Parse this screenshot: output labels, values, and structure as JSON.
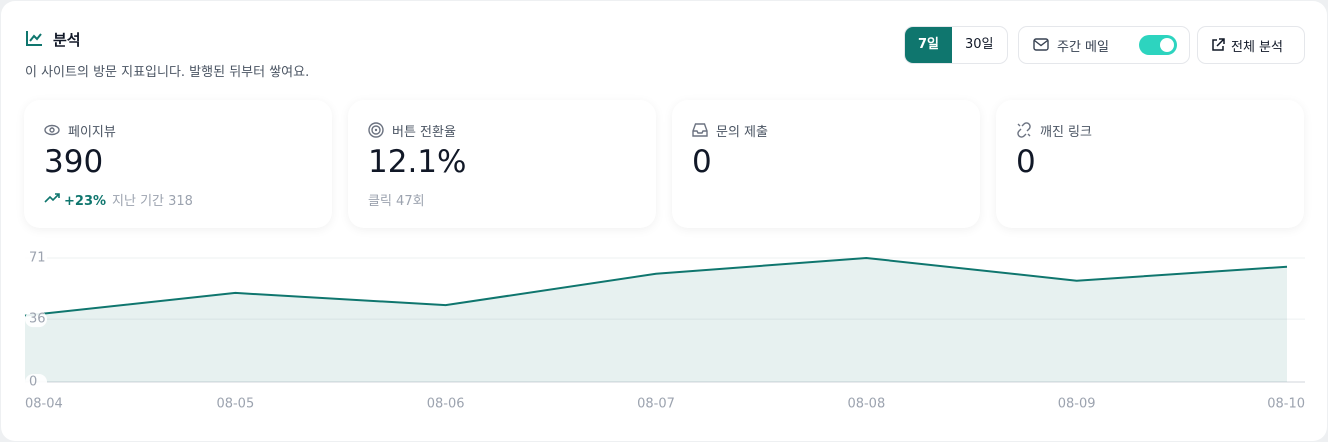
{
  "header": {
    "title": "분석",
    "subtitle": "이 사이트의 방문 지표입니다. 발행된 뒤부터 쌓여요."
  },
  "controls": {
    "ranges": [
      "7일",
      "30일"
    ],
    "active_range": 0,
    "mail_label": "주간 메일",
    "mail_on": true,
    "full_button": "전체 분석"
  },
  "stats": [
    {
      "label": "페이지뷰",
      "value": "390",
      "change": "+23%",
      "note": "지난 기간 318"
    },
    {
      "label": "버튼 전환율",
      "value": "12.1%",
      "note": "클릭 47회"
    },
    {
      "label": "문의 제출",
      "value": "0"
    },
    {
      "label": "깨진 링크",
      "value": "0"
    }
  ],
  "chart_data": {
    "type": "line",
    "x": [
      "08-04",
      "08-05",
      "08-06",
      "08-07",
      "08-08",
      "08-09",
      "08-10"
    ],
    "values": [
      38,
      51,
      44,
      62,
      71,
      58,
      66
    ],
    "color": "#0f766e",
    "ylim": [
      0,
      71
    ],
    "yticks": [
      0,
      36,
      71
    ],
    "grid": true
  }
}
